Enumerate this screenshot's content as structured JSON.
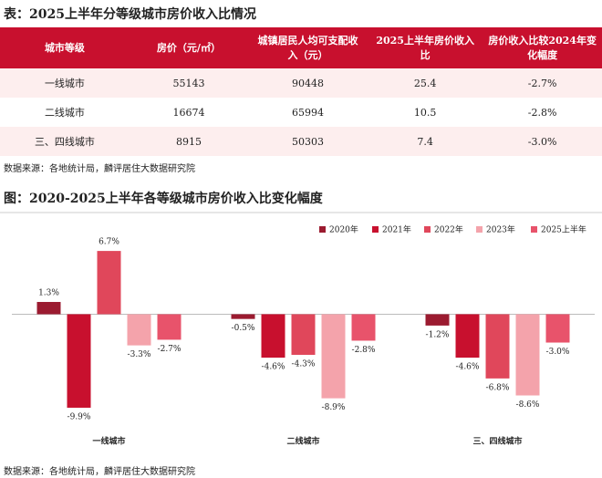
{
  "table_title": "表：2025上半年分等级城市房价收入比情况",
  "table": {
    "header": [
      "城市等级",
      "房价（元/㎡）",
      "城镇居民人均可支配收入（元）",
      "2025上半年房价收入比",
      "房价收入比较2024年变化幅度"
    ],
    "rows": [
      [
        "一线城市",
        "55143",
        "90448",
        "25.4",
        "-2.7%"
      ],
      [
        "二线城市",
        "16674",
        "65994",
        "10.5",
        "-2.8%"
      ],
      [
        "三、四线城市",
        "8915",
        "50303",
        "7.4",
        "-3.0%"
      ]
    ]
  },
  "table_source": "数据来源：各地统计局，麟评居住大数据研究院",
  "chart_data": {
    "type": "bar",
    "title": "图：2020-2025上半年各等级城市房价收入比变化幅度",
    "categories": [
      "一线城市",
      "二线城市",
      "三、四线城市"
    ],
    "series": [
      {
        "name": "2020年",
        "color": "#9b1b30",
        "values": [
          1.3,
          -0.5,
          -1.2
        ],
        "value_labels": [
          "1.3%",
          "-0.5%",
          "-1.2%"
        ]
      },
      {
        "name": "2021年",
        "color": "#c8102e",
        "values": [
          -9.9,
          -4.6,
          -4.6
        ],
        "value_labels": [
          "-9.9%",
          "-4.6%",
          "-4.6%"
        ]
      },
      {
        "name": "2022年",
        "color": "#e0475b",
        "values": [
          6.7,
          -4.3,
          -6.8
        ],
        "value_labels": [
          "6.7%",
          "-4.3%",
          "-6.8%"
        ]
      },
      {
        "name": "2023年",
        "color": "#f4a3ab",
        "values": [
          -3.3,
          -8.9,
          -8.6
        ],
        "value_labels": [
          "-3.3%",
          "-8.9%",
          "-8.6%"
        ]
      },
      {
        "name": "2025上半年",
        "color": "#e8536b",
        "values": [
          -2.7,
          -2.8,
          -3.0
        ],
        "value_labels": [
          "-2.7%",
          "-2.8%",
          "-3.0%"
        ]
      }
    ],
    "ylim": [
      -10,
      7
    ],
    "legend": "top-right",
    "source": "数据来源：各地统计局，麟评居住大数据研究院"
  }
}
